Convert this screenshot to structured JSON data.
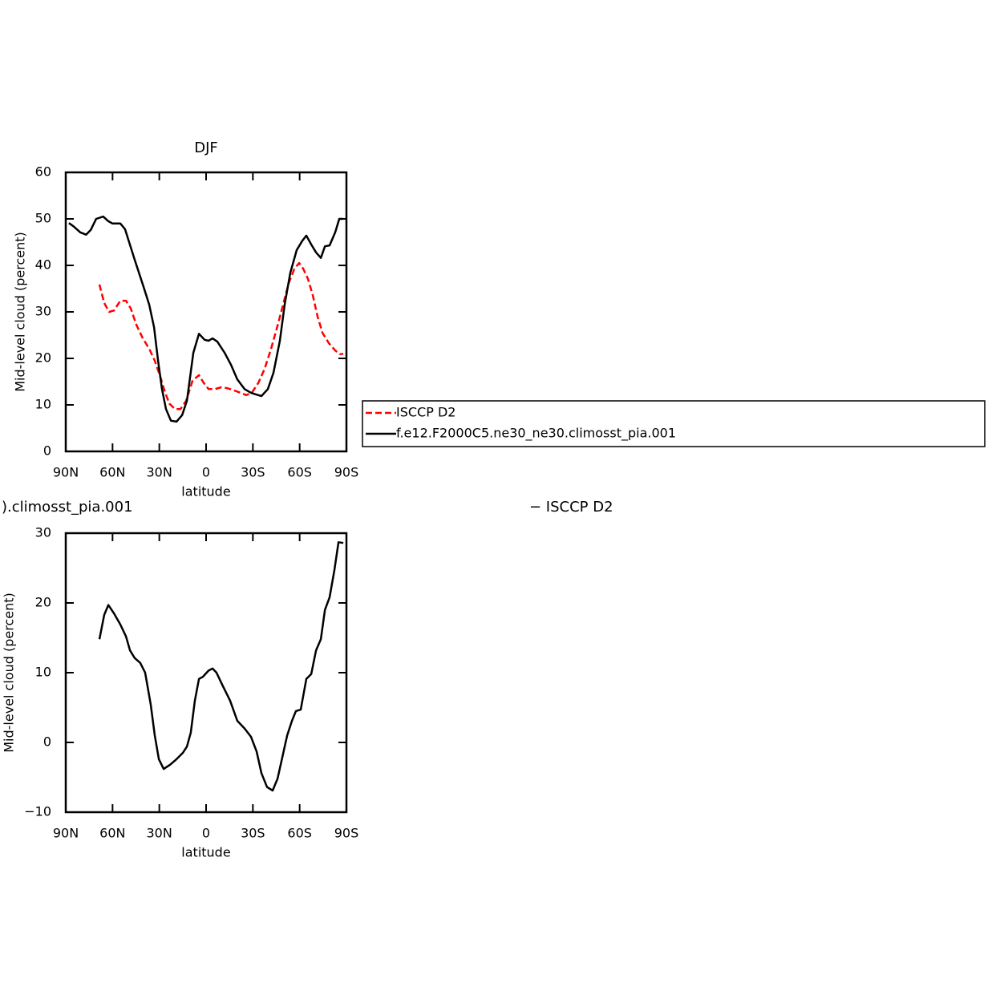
{
  "chart_data": [
    {
      "type": "line",
      "title": "DJF",
      "xlabel": "latitude",
      "ylabel": "Mid-level cloud (percent)",
      "xlim": [
        90,
        -90
      ],
      "ylim": [
        0,
        60
      ],
      "xticks": [
        {
          "value": 90,
          "label": "90N"
        },
        {
          "value": 60,
          "label": "60N"
        },
        {
          "value": 30,
          "label": "30N"
        },
        0,
        {
          "value": -30,
          "label": "30S"
        },
        {
          "value": -60,
          "label": "60S"
        },
        {
          "value": -90,
          "label": "90S"
        }
      ],
      "yticks": [
        0,
        10,
        20,
        30,
        40,
        50,
        60
      ],
      "legend": "right",
      "series": [
        {
          "name": "ISCCP D2",
          "color": "#ff0000",
          "dash": true,
          "x": [
            68.4,
            65.3,
            62.2,
            59.1,
            55,
            51.4,
            48.3,
            44.7,
            40.6,
            36.5,
            32.9,
            29.3,
            26.7,
            23.6,
            20,
            16.4,
            12.8,
            8.7,
            4.6,
            1.5,
            -1.6,
            -5.7,
            -9.8,
            -13.4,
            -18,
            -22.1,
            -25.7,
            -29.3,
            -33.5,
            -37.6,
            -41.7,
            -45.3,
            -49.4,
            -53,
            -56.6,
            -59.7,
            -62.3,
            -65.3,
            -68.4,
            -71.5,
            -74.6,
            -78.7,
            -82.8,
            -85.9,
            -88
          ],
          "values": [
            35.9,
            31.9,
            30,
            30.3,
            32.4,
            32.4,
            30.7,
            27.2,
            24.3,
            22.1,
            19.5,
            16,
            13.1,
            10.3,
            9.1,
            9.1,
            10.9,
            15.2,
            16.4,
            14.7,
            13.4,
            13.4,
            13.8,
            13.6,
            13.1,
            12.6,
            12.1,
            12.6,
            14.7,
            17.8,
            22.1,
            26.4,
            31.6,
            36.2,
            39.3,
            40.5,
            39.3,
            37.1,
            33.6,
            29,
            25.5,
            23.3,
            21.7,
            20.9,
            21
          ]
        },
        {
          "name": "f.e12.F2000C5.ne30_ne30.climosst_pia.001",
          "color": "#000000",
          "dash": false,
          "x": [
            88,
            85,
            80.7,
            77,
            74,
            70.5,
            66,
            62.7,
            60,
            55,
            52,
            46,
            40,
            36.5,
            33.4,
            30.8,
            28.3,
            25.7,
            22.6,
            19,
            15.4,
            12.3,
            8.2,
            4.6,
            1,
            -1.6,
            -4.1,
            -7.2,
            -11.9,
            -16,
            -20,
            -24.7,
            -28.8,
            -32.4,
            -35.5,
            -39.6,
            -43.2,
            -47.3,
            -50.4,
            -54,
            -58.1,
            -61.7,
            -64.3,
            -67.4,
            -70.5,
            -73.6,
            -76.2,
            -79.2,
            -82.8,
            -85.4,
            -88
          ],
          "values": [
            49.1,
            48.4,
            47.1,
            46.6,
            47.6,
            50,
            50.5,
            49.5,
            49,
            49,
            47.8,
            41.4,
            35.3,
            31.6,
            26.7,
            19.5,
            13.4,
            9.1,
            6.6,
            6.4,
            7.8,
            10.9,
            21.2,
            25.3,
            24,
            23.8,
            24.3,
            23.6,
            21.2,
            18.6,
            15.5,
            13.4,
            12.6,
            12.2,
            11.9,
            13.4,
            16.9,
            23.8,
            31.6,
            38.4,
            43.3,
            45.3,
            46.4,
            44.5,
            42.8,
            41.6,
            44.1,
            44.3,
            47.1,
            50,
            50
          ]
        }
      ]
    },
    {
      "type": "line",
      "title_left": ").climosst_pia.001",
      "title_right": "− ISCCP D2",
      "xlabel": "latitude",
      "ylabel": "Mid-level cloud (percent)",
      "xlim": [
        90,
        -90
      ],
      "ylim": [
        -10,
        30
      ],
      "xticks": [
        {
          "value": 90,
          "label": "90N"
        },
        {
          "value": 60,
          "label": "60N"
        },
        {
          "value": 30,
          "label": "30N"
        },
        0,
        {
          "value": -30,
          "label": "30S"
        },
        {
          "value": -60,
          "label": "60S"
        },
        {
          "value": -90,
          "label": "90S"
        }
      ],
      "yticks": [
        {
          "value": -10,
          "label": "−10"
        },
        0,
        10,
        20,
        30
      ],
      "series": [
        {
          "color": "#000000",
          "dash": false,
          "x": [
            68.4,
            65.3,
            62.7,
            59.1,
            55,
            51.4,
            48.8,
            45.8,
            42.2,
            39.1,
            35.5,
            32.9,
            30.3,
            27.2,
            23.1,
            19,
            14.9,
            12.3,
            9.8,
            7.2,
            4.6,
            2.1,
            -1.6,
            -4.1,
            -6.7,
            -10.3,
            -15.4,
            -20,
            -24.7,
            -28.8,
            -32.4,
            -35.5,
            -39.1,
            -42.7,
            -45.8,
            -48.9,
            -52,
            -55.1,
            -57.6,
            -60.7,
            -64.3,
            -67.4,
            -70.5,
            -73.6,
            -76.2,
            -79.2,
            -82.3,
            -84.9,
            -88
          ],
          "values": [
            14.8,
            18.3,
            19.7,
            18.5,
            16.9,
            15.2,
            13.2,
            12.1,
            11.4,
            10,
            5.4,
            1,
            -2.4,
            -3.8,
            -3.2,
            -2.4,
            -1.5,
            -0.6,
            1.4,
            6,
            9.1,
            9.4,
            10.3,
            10.6,
            10,
            8.3,
            6,
            3.1,
            2,
            0.8,
            -1.3,
            -4.4,
            -6.4,
            -6.9,
            -5.2,
            -2.1,
            1,
            3.1,
            4.5,
            4.7,
            9.1,
            9.8,
            13.2,
            14.8,
            19,
            20.8,
            24.7,
            28.7,
            28.6
          ]
        }
      ]
    }
  ]
}
